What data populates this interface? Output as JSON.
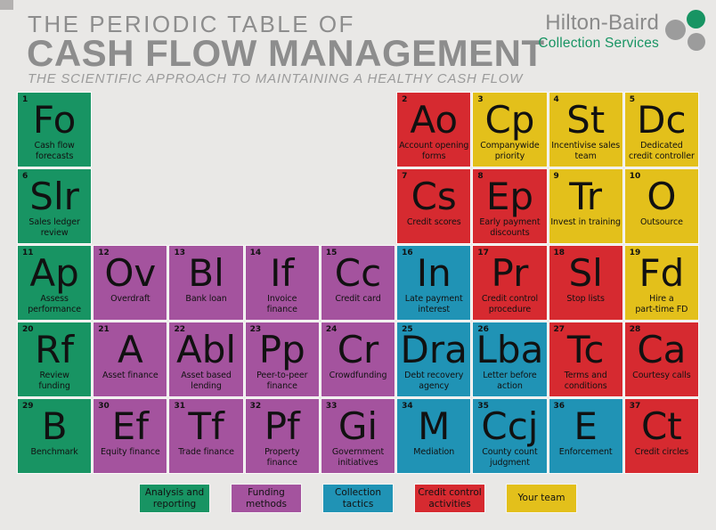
{
  "header": {
    "title_line1": "THE PERIODIC TABLE OF",
    "title_line2": "CASH FLOW MANAGEMENT",
    "subtitle": "THE SCIENTIFIC APPROACH TO MAINTAINING A HEALTHY CASH FLOW"
  },
  "logo": {
    "name": "Hilton-Baird",
    "tagline": "Collection Services"
  },
  "colors": {
    "background": "#e9e8e6",
    "title_gray": "#8d8d8d",
    "green": "#189463",
    "purple": "#a4539e",
    "blue": "#2093b5",
    "red": "#d62a30",
    "yellow": "#e3c01b"
  },
  "categories": [
    {
      "id": "analysis",
      "label": "Analysis and\nreporting",
      "color": "#189463"
    },
    {
      "id": "funding",
      "label": "Funding\nmethods",
      "color": "#a4539e"
    },
    {
      "id": "collection",
      "label": "Collection\ntactics",
      "color": "#2093b5"
    },
    {
      "id": "credit",
      "label": "Credit control\nactivities",
      "color": "#d62a30"
    },
    {
      "id": "team",
      "label": "Your team",
      "color": "#e3c01b"
    }
  ],
  "elements": [
    {
      "n": "1",
      "sym": "Fo",
      "label": "Cash flow\nforecasts",
      "cat": "analysis",
      "row": 1,
      "col": 1
    },
    {
      "n": "2",
      "sym": "Ao",
      "label": "Account opening\nforms",
      "cat": "credit",
      "row": 1,
      "col": 6
    },
    {
      "n": "3",
      "sym": "Cp",
      "label": "Companywide\npriority",
      "cat": "team",
      "row": 1,
      "col": 7
    },
    {
      "n": "4",
      "sym": "St",
      "label": "Incentivise sales\nteam",
      "cat": "team",
      "row": 1,
      "col": 8
    },
    {
      "n": "5",
      "sym": "Dc",
      "label": "Dedicated\ncredit controller",
      "cat": "team",
      "row": 1,
      "col": 9
    },
    {
      "n": "6",
      "sym": "Slr",
      "label": "Sales ledger\nreview",
      "cat": "analysis",
      "row": 2,
      "col": 1
    },
    {
      "n": "7",
      "sym": "Cs",
      "label": "Credit scores",
      "cat": "credit",
      "row": 2,
      "col": 6
    },
    {
      "n": "8",
      "sym": "Ep",
      "label": "Early payment\ndiscounts",
      "cat": "credit",
      "row": 2,
      "col": 7
    },
    {
      "n": "9",
      "sym": "Tr",
      "label": "Invest in training",
      "cat": "team",
      "row": 2,
      "col": 8
    },
    {
      "n": "10",
      "sym": "O",
      "label": "Outsource",
      "cat": "team",
      "row": 2,
      "col": 9
    },
    {
      "n": "11",
      "sym": "Ap",
      "label": "Assess\nperformance",
      "cat": "analysis",
      "row": 3,
      "col": 1
    },
    {
      "n": "12",
      "sym": "Ov",
      "label": "Overdraft",
      "cat": "funding",
      "row": 3,
      "col": 2
    },
    {
      "n": "13",
      "sym": "Bl",
      "label": "Bank loan",
      "cat": "funding",
      "row": 3,
      "col": 3
    },
    {
      "n": "14",
      "sym": "If",
      "label": "Invoice\nfinance",
      "cat": "funding",
      "row": 3,
      "col": 4
    },
    {
      "n": "15",
      "sym": "Cc",
      "label": "Credit card",
      "cat": "funding",
      "row": 3,
      "col": 5
    },
    {
      "n": "16",
      "sym": "In",
      "label": "Late payment\ninterest",
      "cat": "collection",
      "row": 3,
      "col": 6
    },
    {
      "n": "17",
      "sym": "Pr",
      "label": "Credit control\nprocedure",
      "cat": "credit",
      "row": 3,
      "col": 7
    },
    {
      "n": "18",
      "sym": "Sl",
      "label": "Stop lists",
      "cat": "credit",
      "row": 3,
      "col": 8
    },
    {
      "n": "19",
      "sym": "Fd",
      "label": "Hire a\npart-time FD",
      "cat": "team",
      "row": 3,
      "col": 9
    },
    {
      "n": "20",
      "sym": "Rf",
      "label": "Review\nfunding",
      "cat": "analysis",
      "row": 4,
      "col": 1
    },
    {
      "n": "21",
      "sym": "A",
      "label": "Asset finance",
      "cat": "funding",
      "row": 4,
      "col": 2
    },
    {
      "n": "22",
      "sym": "Abl",
      "label": "Asset based\nlending",
      "cat": "funding",
      "row": 4,
      "col": 3
    },
    {
      "n": "23",
      "sym": "Pp",
      "label": "Peer-to-peer\nfinance",
      "cat": "funding",
      "row": 4,
      "col": 4
    },
    {
      "n": "24",
      "sym": "Cr",
      "label": "Crowdfunding",
      "cat": "funding",
      "row": 4,
      "col": 5
    },
    {
      "n": "25",
      "sym": "Dra",
      "label": "Debt recovery\nagency",
      "cat": "collection",
      "row": 4,
      "col": 6
    },
    {
      "n": "26",
      "sym": "Lba",
      "label": "Letter before\naction",
      "cat": "collection",
      "row": 4,
      "col": 7
    },
    {
      "n": "27",
      "sym": "Tc",
      "label": "Terms and\nconditions",
      "cat": "credit",
      "row": 4,
      "col": 8
    },
    {
      "n": "28",
      "sym": "Ca",
      "label": "Courtesy calls",
      "cat": "credit",
      "row": 4,
      "col": 9
    },
    {
      "n": "29",
      "sym": "B",
      "label": "Benchmark",
      "cat": "analysis",
      "row": 5,
      "col": 1
    },
    {
      "n": "30",
      "sym": "Ef",
      "label": "Equity finance",
      "cat": "funding",
      "row": 5,
      "col": 2
    },
    {
      "n": "31",
      "sym": "Tf",
      "label": "Trade finance",
      "cat": "funding",
      "row": 5,
      "col": 3
    },
    {
      "n": "32",
      "sym": "Pf",
      "label": "Property\nfinance",
      "cat": "funding",
      "row": 5,
      "col": 4
    },
    {
      "n": "33",
      "sym": "Gi",
      "label": "Government\ninitiatives",
      "cat": "funding",
      "row": 5,
      "col": 5
    },
    {
      "n": "34",
      "sym": "M",
      "label": "Mediation",
      "cat": "collection",
      "row": 5,
      "col": 6
    },
    {
      "n": "35",
      "sym": "Ccj",
      "label": "County count\njudgment",
      "cat": "collection",
      "row": 5,
      "col": 7
    },
    {
      "n": "36",
      "sym": "E",
      "label": "Enforcement",
      "cat": "collection",
      "row": 5,
      "col": 8
    },
    {
      "n": "37",
      "sym": "Ct",
      "label": "Credit circles",
      "cat": "credit",
      "row": 5,
      "col": 9
    }
  ]
}
